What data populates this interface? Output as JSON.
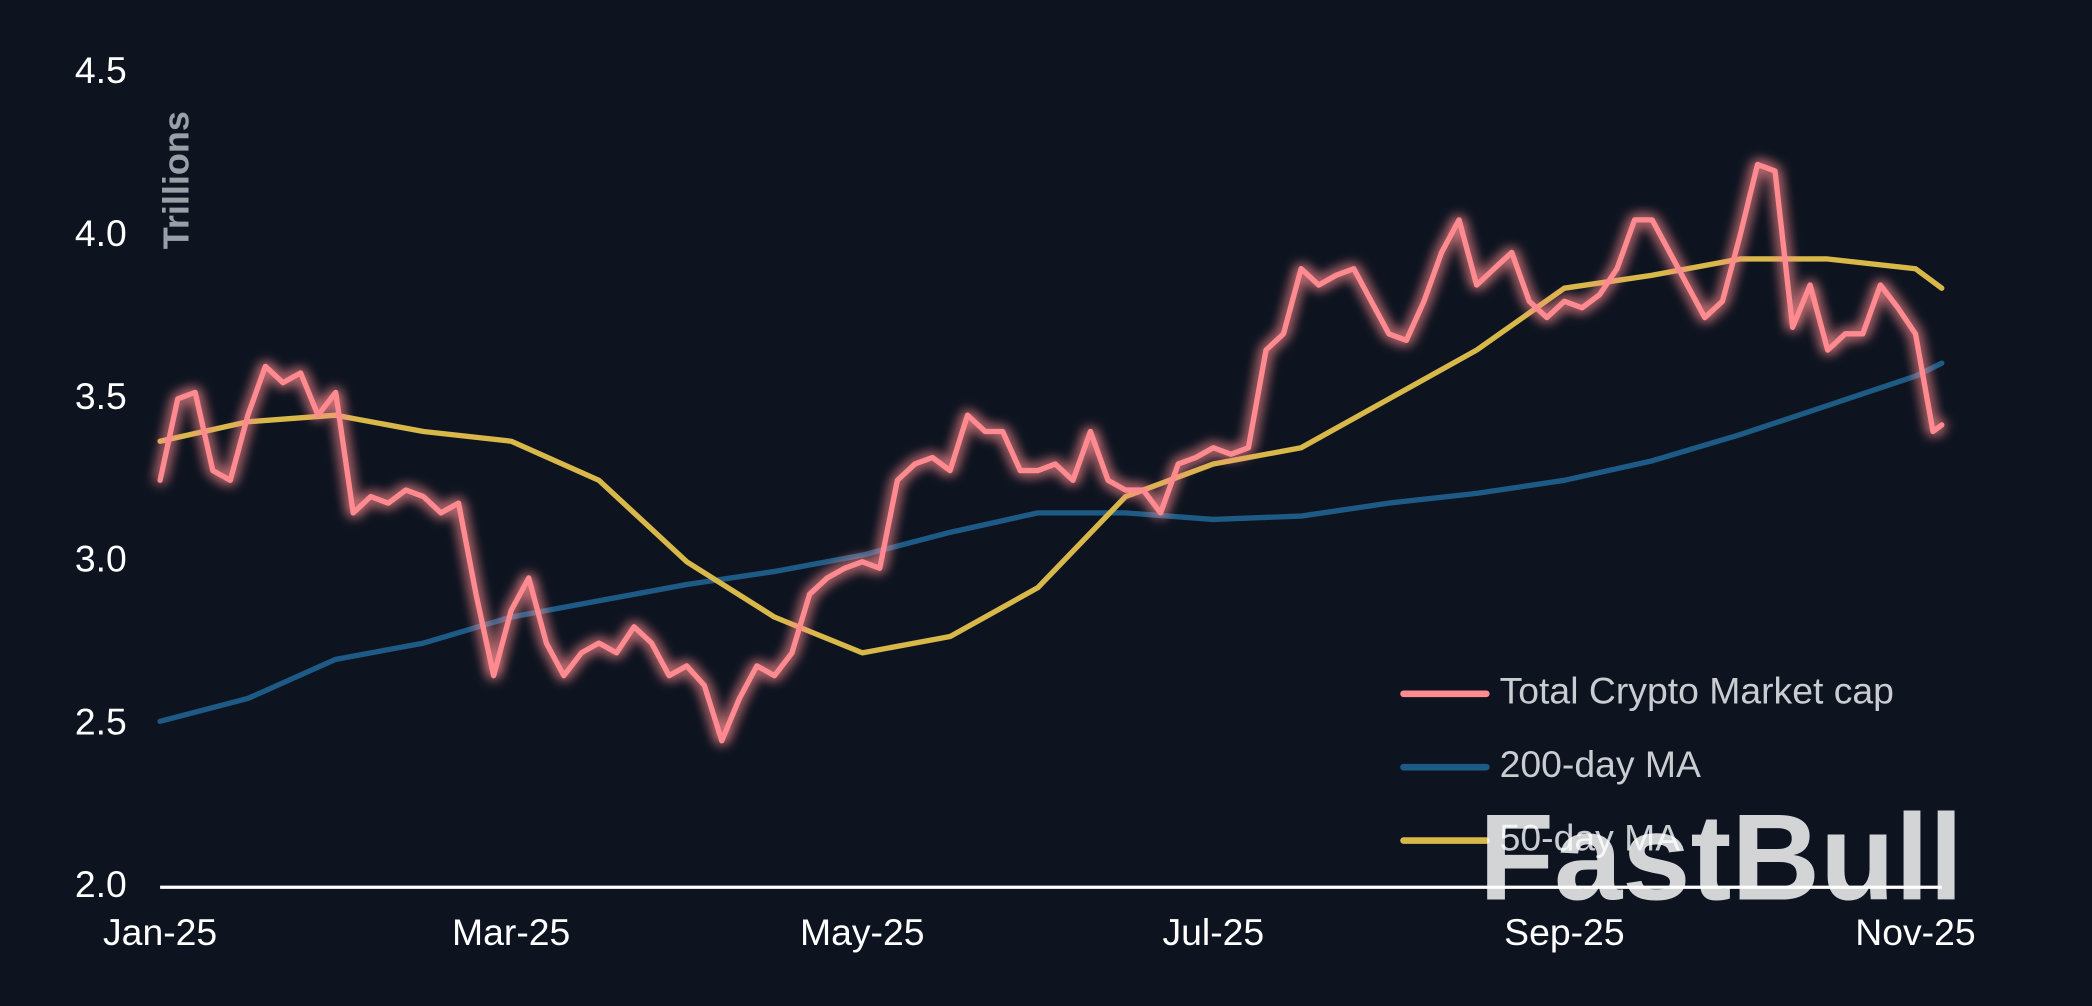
{
  "chart_data": {
    "type": "line",
    "y_label": "Trillions",
    "watermark": "FastBull",
    "xlim": [
      0,
      10.2
    ],
    "xticks": [
      {
        "value": 0,
        "label": "Jan-25"
      },
      {
        "value": 2,
        "label": "Mar-25"
      },
      {
        "value": 4,
        "label": "May-25"
      },
      {
        "value": 6,
        "label": "Jul-25"
      },
      {
        "value": 8,
        "label": "Sep-25"
      },
      {
        "value": 10,
        "label": "Nov-25"
      }
    ],
    "ylim": [
      2.0,
      4.6
    ],
    "yticks": [
      {
        "value": 2,
        "label": "2.0"
      },
      2.5,
      {
        "value": 3,
        "label": "3.0"
      },
      3.5,
      {
        "value": 4,
        "label": "4.0"
      },
      4.5
    ],
    "grid": false,
    "legend": "lower right",
    "series": [
      {
        "name": "Total Crypto Market cap",
        "color": "#ff8a8f",
        "glow": true,
        "x": [
          0,
          0.1,
          0.2,
          0.3,
          0.4,
          0.5,
          0.6,
          0.7,
          0.8,
          0.9,
          1,
          1.1,
          1.2,
          1.3,
          1.4,
          1.5,
          1.6,
          1.7,
          1.8,
          1.9,
          2,
          2.1,
          2.2,
          2.3,
          2.4,
          2.5,
          2.6,
          2.7,
          2.8,
          2.9,
          3,
          3.1,
          3.2,
          3.3,
          3.4,
          3.5,
          3.6,
          3.7,
          3.8,
          3.9,
          4,
          4.1,
          4.2,
          4.3,
          4.4,
          4.5,
          4.6,
          4.7,
          4.8,
          4.9,
          5,
          5.1,
          5.2,
          5.3,
          5.4,
          5.5,
          5.6,
          5.7,
          5.8,
          5.9,
          6,
          6.1,
          6.2,
          6.3,
          6.4,
          6.5,
          6.6,
          6.7,
          6.8,
          6.9,
          7,
          7.1,
          7.2,
          7.3,
          7.4,
          7.5,
          7.6,
          7.7,
          7.8,
          7.9,
          8,
          8.1,
          8.2,
          8.3,
          8.4,
          8.5,
          8.6,
          8.7,
          8.8,
          8.9,
          9,
          9.1,
          9.2,
          9.3,
          9.4,
          9.5,
          9.6,
          9.7,
          9.8,
          9.9,
          10,
          10.1,
          10.15
        ],
        "values": [
          3.25,
          3.5,
          3.52,
          3.28,
          3.25,
          3.45,
          3.6,
          3.55,
          3.58,
          3.45,
          3.52,
          3.15,
          3.2,
          3.18,
          3.22,
          3.2,
          3.15,
          3.18,
          2.9,
          2.65,
          2.85,
          2.95,
          2.75,
          2.65,
          2.72,
          2.75,
          2.72,
          2.8,
          2.75,
          2.65,
          2.68,
          2.62,
          2.45,
          2.58,
          2.68,
          2.65,
          2.72,
          2.9,
          2.95,
          2.98,
          3.0,
          2.98,
          3.25,
          3.3,
          3.32,
          3.28,
          3.45,
          3.4,
          3.4,
          3.28,
          3.28,
          3.3,
          3.25,
          3.4,
          3.25,
          3.22,
          3.22,
          3.15,
          3.3,
          3.32,
          3.35,
          3.33,
          3.35,
          3.65,
          3.7,
          3.9,
          3.85,
          3.88,
          3.9,
          3.8,
          3.7,
          3.68,
          3.8,
          3.95,
          4.05,
          3.85,
          3.9,
          3.95,
          3.8,
          3.75,
          3.8,
          3.78,
          3.82,
          3.9,
          4.05,
          4.05,
          3.95,
          3.85,
          3.75,
          3.8,
          4.0,
          4.22,
          4.2,
          3.72,
          3.85,
          3.65,
          3.7,
          3.7,
          3.85,
          3.78,
          3.7,
          3.4,
          3.42
        ]
      },
      {
        "name": "200-day MA",
        "color": "#1d5b86",
        "x": [
          0,
          0.5,
          1,
          1.5,
          2,
          2.5,
          3,
          3.5,
          4,
          4.5,
          5,
          5.5,
          6,
          6.5,
          7,
          7.5,
          8,
          8.5,
          9,
          9.5,
          10,
          10.15
        ],
        "values": [
          2.51,
          2.58,
          2.7,
          2.75,
          2.83,
          2.88,
          2.93,
          2.97,
          3.02,
          3.09,
          3.15,
          3.15,
          3.13,
          3.14,
          3.18,
          3.21,
          3.25,
          3.31,
          3.39,
          3.48,
          3.57,
          3.61
        ]
      },
      {
        "name": "50-day MA",
        "color": "#d9b84a",
        "x": [
          0,
          0.5,
          1,
          1.5,
          2,
          2.5,
          3,
          3.5,
          4,
          4.5,
          5,
          5.5,
          6,
          6.5,
          7,
          7.5,
          8,
          8.5,
          9,
          9.5,
          10,
          10.15
        ],
        "values": [
          3.37,
          3.43,
          3.45,
          3.4,
          3.37,
          3.25,
          3.0,
          2.83,
          2.72,
          2.77,
          2.92,
          3.2,
          3.3,
          3.35,
          3.5,
          3.65,
          3.84,
          3.88,
          3.93,
          3.93,
          3.9,
          3.84
        ]
      }
    ]
  }
}
